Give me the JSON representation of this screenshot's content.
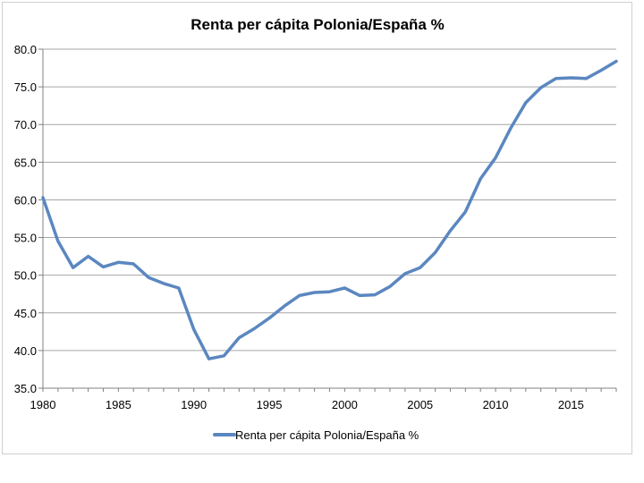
{
  "chart_data": {
    "type": "line",
    "title": "Renta per cápita Polonia/España %",
    "xlabel": "",
    "ylabel": "",
    "xlim": [
      1980,
      2018
    ],
    "ylim": [
      35,
      80
    ],
    "x_ticks": [
      "1980",
      "1985",
      "1990",
      "1995",
      "2000",
      "2005",
      "2010",
      "2015"
    ],
    "y_ticks": [
      "35.0",
      "40.0",
      "45.0",
      "50.0",
      "55.0",
      "60.0",
      "65.0",
      "70.0",
      "75.0",
      "80.0"
    ],
    "grid": true,
    "legend_position": "bottom",
    "colors": {
      "series": "#5b87c0",
      "grid": "#a6a6a6",
      "axis": "#808080",
      "text": "#000000"
    },
    "series": [
      {
        "name": "Renta per cápita Polonia/España %",
        "x": [
          1980,
          1981,
          1982,
          1983,
          1984,
          1985,
          1986,
          1987,
          1988,
          1989,
          1990,
          1991,
          1992,
          1993,
          1994,
          1995,
          1996,
          1997,
          1998,
          1999,
          2000,
          2001,
          2002,
          2003,
          2004,
          2005,
          2006,
          2007,
          2008,
          2009,
          2010,
          2011,
          2012,
          2013,
          2014,
          2015,
          2016,
          2017,
          2018
        ],
        "values": [
          60.3,
          54.5,
          51.0,
          52.5,
          51.1,
          51.7,
          51.5,
          49.7,
          48.9,
          48.3,
          42.8,
          38.9,
          39.3,
          41.7,
          42.9,
          44.3,
          45.9,
          47.3,
          47.7,
          47.8,
          48.3,
          47.3,
          47.4,
          48.5,
          50.2,
          51.0,
          53.0,
          55.9,
          58.4,
          62.8,
          65.6,
          69.5,
          72.9,
          74.9,
          76.1,
          76.2,
          76.1,
          77.2,
          78.4
        ]
      }
    ]
  }
}
